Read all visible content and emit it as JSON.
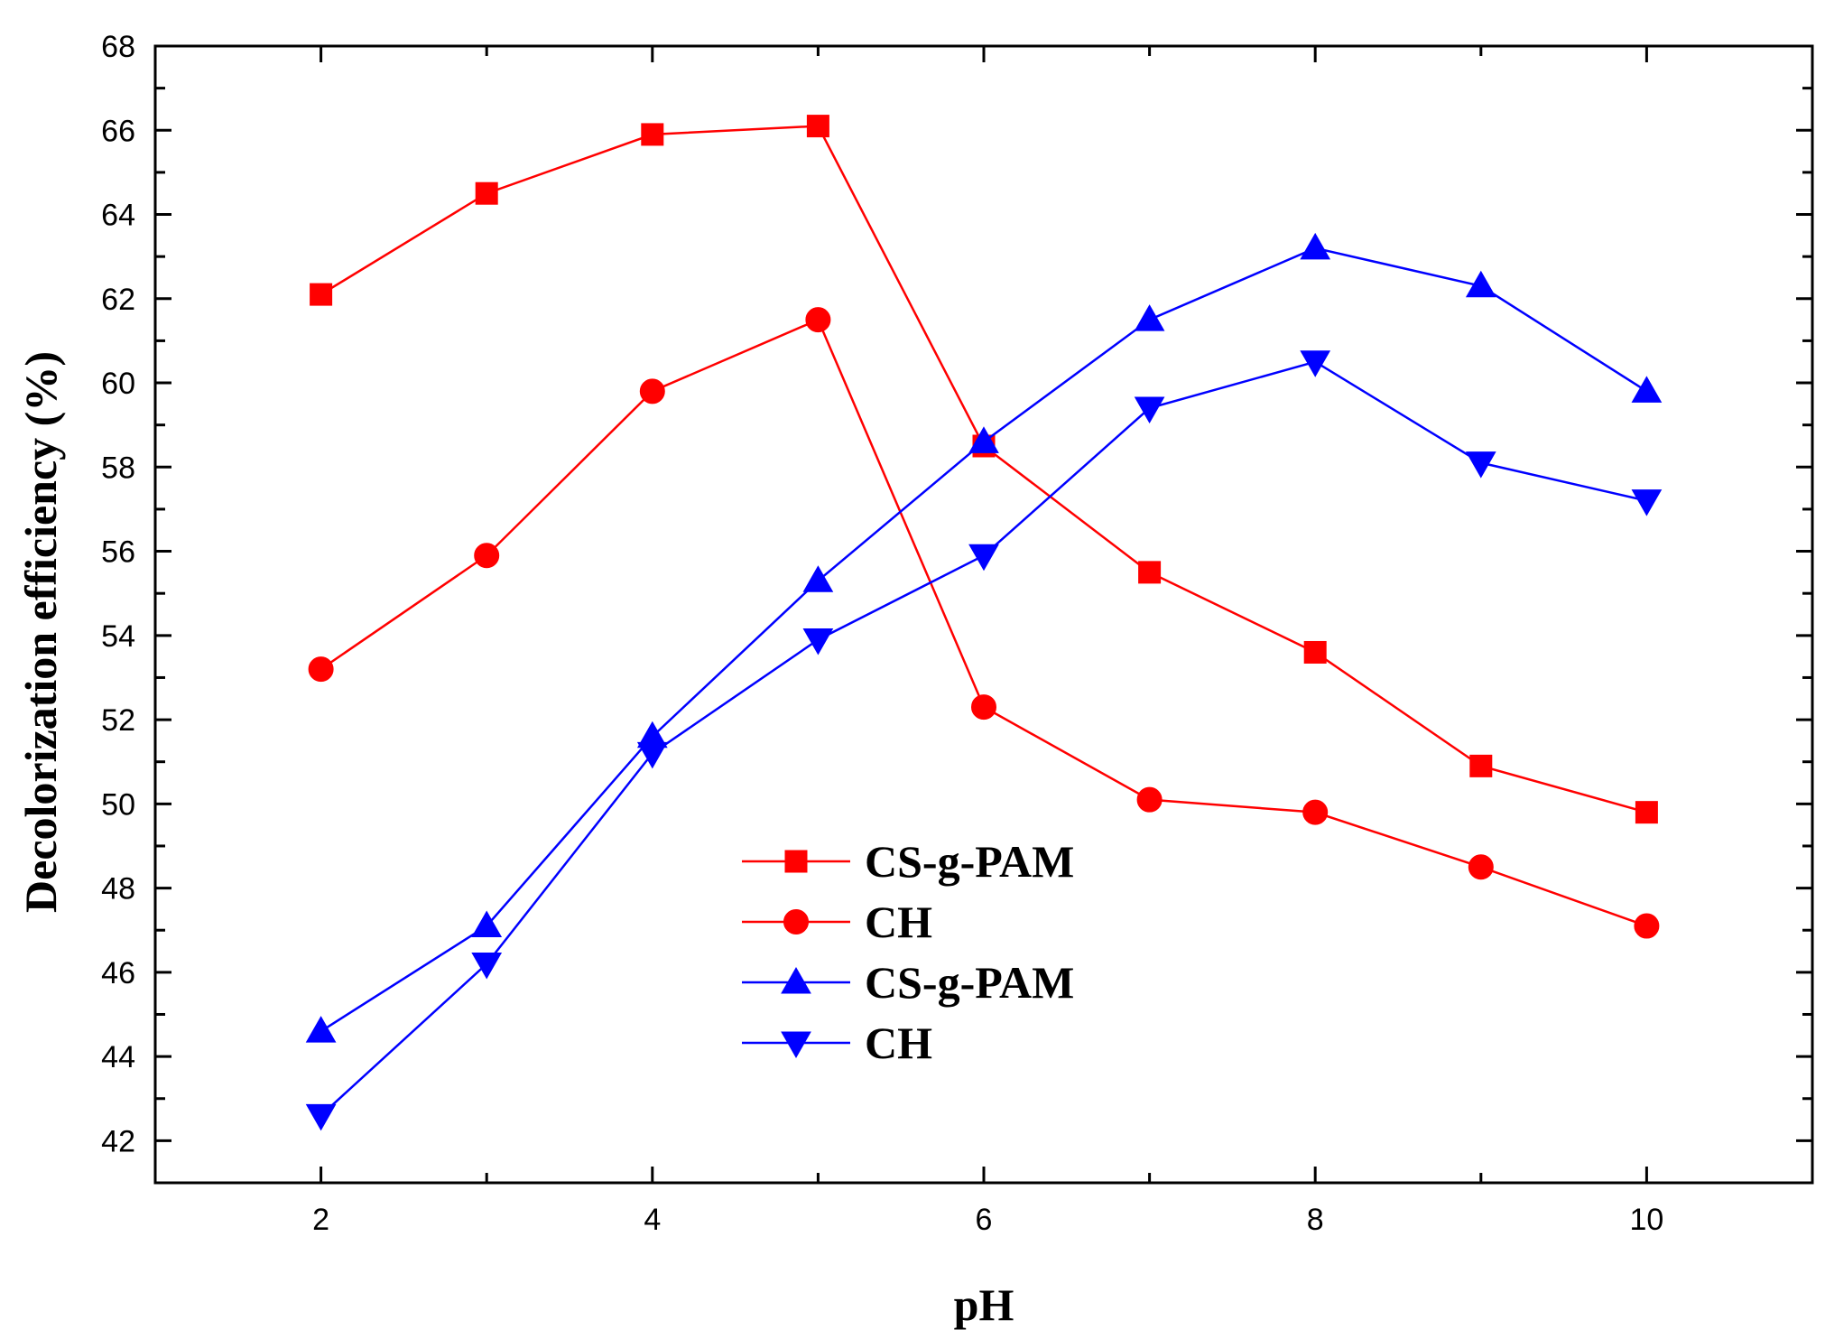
{
  "chart_data": {
    "type": "line",
    "title": "",
    "xlabel": "pH",
    "ylabel": "Decolorization efficiency (%)",
    "xlim": [
      1,
      11
    ],
    "ylim": [
      41,
      68
    ],
    "xticks": [
      2,
      4,
      6,
      8,
      10
    ],
    "yticks": [
      42,
      44,
      46,
      48,
      50,
      52,
      54,
      56,
      58,
      60,
      62,
      64,
      66,
      68
    ],
    "grid": false,
    "legend_position": "lower-center",
    "x": [
      2,
      3,
      4,
      5,
      6,
      7,
      8,
      9,
      10
    ],
    "series": [
      {
        "name": "CS-g-PAM",
        "color": "#ff0000",
        "marker": "square",
        "values": [
          62.1,
          64.5,
          65.9,
          66.1,
          58.5,
          55.5,
          53.6,
          50.9,
          49.8
        ]
      },
      {
        "name": "CH",
        "color": "#ff0000",
        "marker": "circle",
        "values": [
          53.2,
          55.9,
          59.8,
          61.5,
          52.3,
          50.1,
          49.8,
          48.5,
          47.1
        ]
      },
      {
        "name": "CS-g-PAM",
        "color": "#0000ff",
        "marker": "triangle-up",
        "values": [
          44.6,
          47.1,
          51.6,
          55.3,
          58.6,
          61.5,
          63.2,
          62.3,
          59.8
        ]
      },
      {
        "name": "CH",
        "color": "#0000ff",
        "marker": "triangle-down",
        "values": [
          42.6,
          46.2,
          51.2,
          53.9,
          55.9,
          59.4,
          60.5,
          58.1,
          57.2
        ]
      }
    ]
  }
}
